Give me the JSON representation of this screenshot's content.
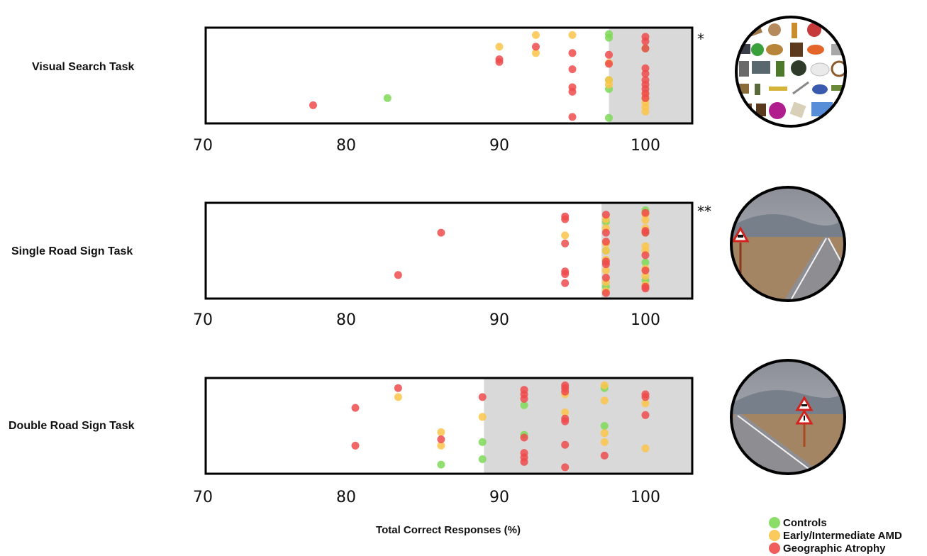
{
  "chart_data": [
    {
      "type": "scatter",
      "title": "Visual Search Task",
      "significance": "*",
      "xlim": [
        70,
        103
      ],
      "x_ticks": [
        "70",
        "80",
        "90",
        "100"
      ],
      "shaded_from": 97.5,
      "series": [
        {
          "name": "Controls",
          "color": "#7ed957",
          "x": [
            82.7,
            97.5,
            97.5,
            97.5,
            97.5,
            100,
            100,
            97.5
          ],
          "y": [
            0.75,
            0.04,
            0.08,
            0.65,
            0.97,
            0.2,
            0.75,
            0.55
          ]
        },
        {
          "name": "Early/Intermediate AMD",
          "color": "#fbc44a",
          "x": [
            90,
            92.5,
            95,
            92.5,
            97.5,
            97.5,
            97.5,
            100,
            100,
            100,
            100,
            100
          ],
          "y": [
            0.18,
            0.05,
            0.05,
            0.25,
            0.55,
            0.6,
            0.36,
            0.7,
            0.75,
            0.8,
            0.85,
            0.9
          ]
        },
        {
          "name": "Geographic Atrophy",
          "color": "#ee4b4b",
          "x": [
            77.7,
            90,
            90,
            92.5,
            95,
            95,
            95,
            95,
            95,
            97.5,
            97.5,
            100,
            100,
            100,
            100,
            100,
            100,
            100,
            100,
            100,
            100
          ],
          "y": [
            0.83,
            0.32,
            0.35,
            0.18,
            0.25,
            0.43,
            0.63,
            0.68,
            0.96,
            0.27,
            0.37,
            0.07,
            0.12,
            0.2,
            0.42,
            0.48,
            0.55,
            0.6,
            0.65,
            0.7,
            0.75
          ]
        }
      ]
    },
    {
      "type": "scatter",
      "title": "Single Road Sign Task",
      "significance": "**",
      "xlim": [
        70,
        103
      ],
      "x_ticks": [
        "70",
        "80",
        "90",
        "100"
      ],
      "shaded_from": 97,
      "series": [
        {
          "name": "Controls",
          "color": "#7ed957",
          "x": [
            97.3,
            97.3,
            97.3,
            100,
            100,
            100,
            100
          ],
          "y": [
            0.18,
            0.5,
            0.9,
            0.05,
            0.3,
            0.63,
            0.83
          ]
        },
        {
          "name": "Early/Intermediate AMD",
          "color": "#fbc44a",
          "x": [
            94.5,
            97.3,
            97.3,
            97.3,
            97.3,
            97.3,
            97.3,
            97.3,
            97.3,
            100,
            100,
            100,
            100,
            100,
            100,
            100,
            100
          ],
          "y": [
            0.33,
            0.15,
            0.25,
            0.42,
            0.5,
            0.6,
            0.72,
            0.85,
            0.95,
            0.1,
            0.16,
            0.25,
            0.45,
            0.5,
            0.7,
            0.78,
            0.88
          ]
        },
        {
          "name": "Geographic Atrophy",
          "color": "#ee4b4b",
          "x": [
            86.2,
            83.4,
            94.5,
            94.5,
            94.5,
            94.5,
            94.5,
            94.5,
            97.3,
            97.3,
            97.3,
            97.3,
            97.3,
            97.3,
            97.3,
            100,
            100,
            100,
            100,
            100,
            100,
            100
          ],
          "y": [
            0.3,
            0.77,
            0.12,
            0.15,
            0.42,
            0.73,
            0.76,
            0.86,
            0.1,
            0.3,
            0.4,
            0.62,
            0.65,
            0.8,
            0.97,
            0.08,
            0.28,
            0.3,
            0.55,
            0.72,
            0.9,
            0.92
          ]
        }
      ]
    },
    {
      "type": "scatter",
      "title": "Double Road Sign Task",
      "significance": "",
      "xlim": [
        70,
        103
      ],
      "x_ticks": [
        "70",
        "80",
        "90",
        "100"
      ],
      "shaded_from": 89,
      "series": [
        {
          "name": "Controls",
          "color": "#7ed957",
          "x": [
            86.2,
            88.9,
            88.9,
            91.7,
            91.7,
            97.2,
            97.2
          ],
          "y": [
            0.93,
            0.68,
            0.87,
            0.27,
            0.6,
            0.08,
            0.5
          ]
        },
        {
          "name": "Early/Intermediate AMD",
          "color": "#fbc44a",
          "x": [
            83.4,
            86.2,
            86.2,
            88.9,
            94.5,
            94.5,
            97.2,
            97.2,
            97.2,
            97.2,
            100,
            100
          ],
          "y": [
            0.18,
            0.57,
            0.72,
            0.4,
            0.15,
            0.35,
            0.05,
            0.22,
            0.58,
            0.68,
            0.25,
            0.75
          ]
        },
        {
          "name": "Geographic Atrophy",
          "color": "#ee4b4b",
          "x": [
            83.4,
            80.6,
            80.6,
            86.2,
            88.9,
            91.7,
            91.7,
            91.7,
            91.7,
            91.7,
            91.7,
            91.7,
            94.5,
            94.5,
            94.5,
            94.5,
            94.5,
            94.5,
            94.5,
            97.2,
            100,
            100,
            100
          ],
          "y": [
            0.08,
            0.3,
            0.72,
            0.65,
            0.18,
            0.1,
            0.15,
            0.2,
            0.63,
            0.8,
            0.85,
            0.9,
            0.05,
            0.08,
            0.12,
            0.42,
            0.45,
            0.71,
            0.96,
            0.83,
            0.15,
            0.18,
            0.38
          ]
        }
      ]
    }
  ],
  "xlabel": "Total Correct Responses (%)",
  "legend": {
    "position": "bottom-right",
    "items": [
      {
        "label": "Controls",
        "color": "#7ed957"
      },
      {
        "label": "Early/Intermediate AMD",
        "color": "#fbc44a"
      },
      {
        "label": "Geographic Atrophy",
        "color": "#ee4b4b"
      }
    ]
  }
}
